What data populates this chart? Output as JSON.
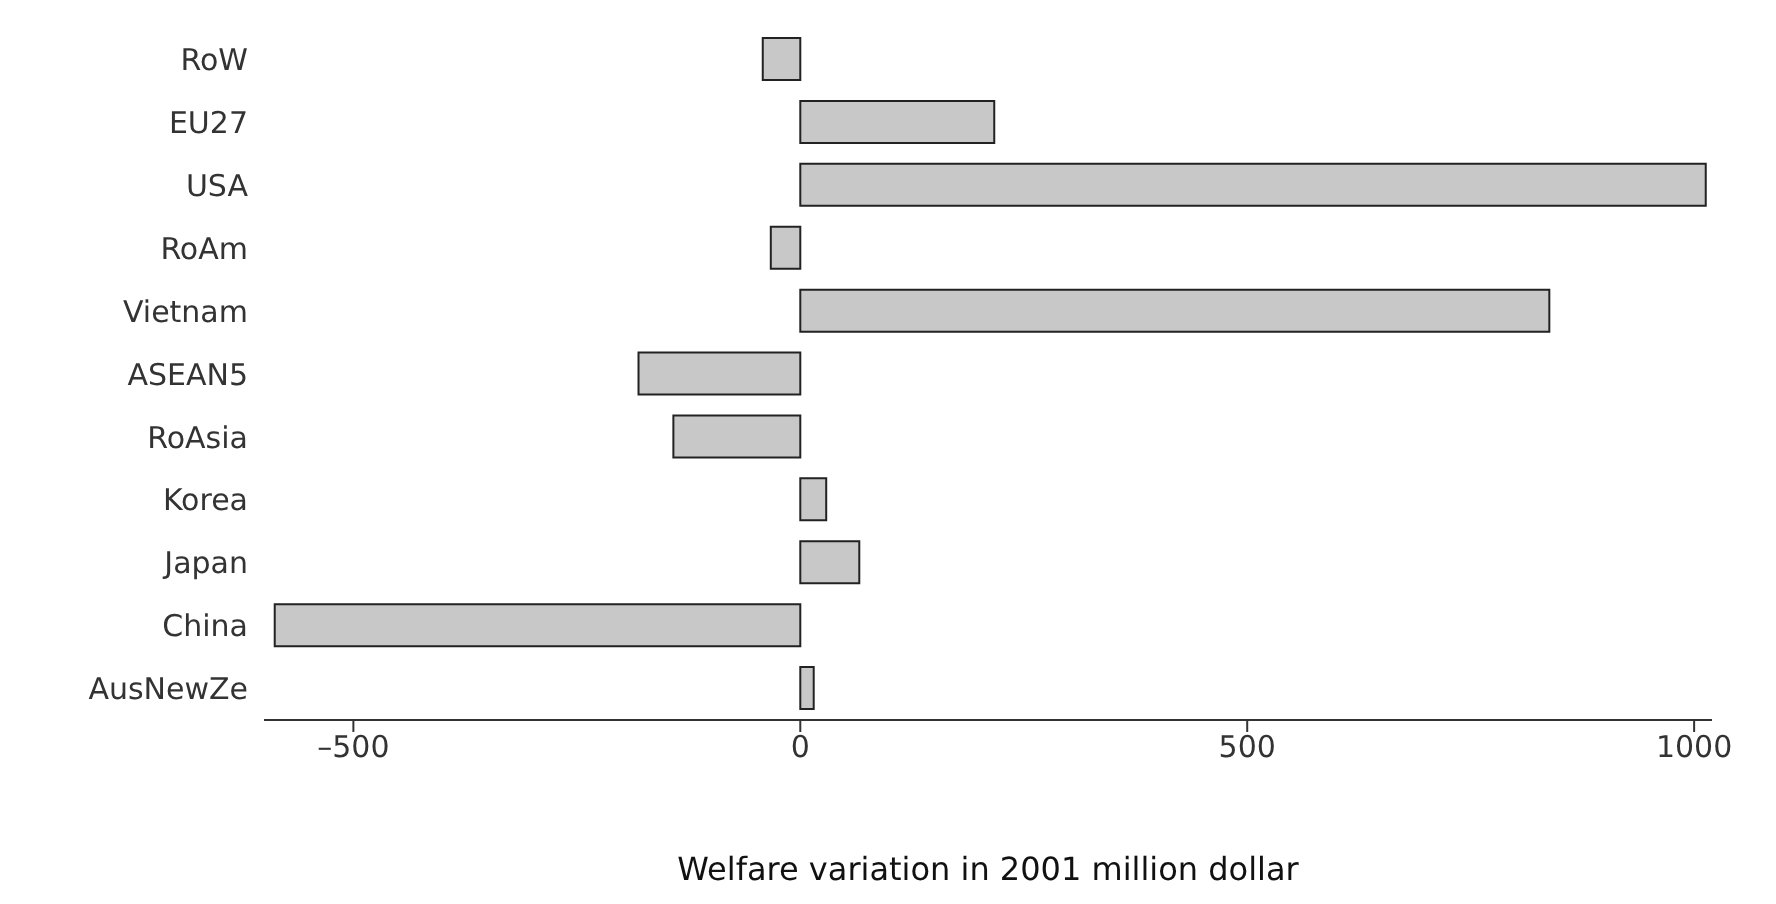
{
  "chart_data": {
    "type": "bar",
    "orientation": "horizontal",
    "xlabel": "Welfare variation in 2001 million dollar",
    "categories": [
      "RoW",
      "EU27",
      "USA",
      "RoAm",
      "Vietnam",
      "ASEAN5",
      "RoAsia",
      "Korea",
      "Japan",
      "China",
      "AusNewZe"
    ],
    "values": [
      -42,
      217,
      1013,
      -33,
      838,
      -181,
      -142,
      29,
      66,
      -588,
      15
    ],
    "color": "#c8c8c8",
    "xlim": [
      -600,
      1020
    ],
    "xticks": [
      {
        "value": -500,
        "label": "–500"
      },
      0,
      500,
      1000
    ]
  }
}
